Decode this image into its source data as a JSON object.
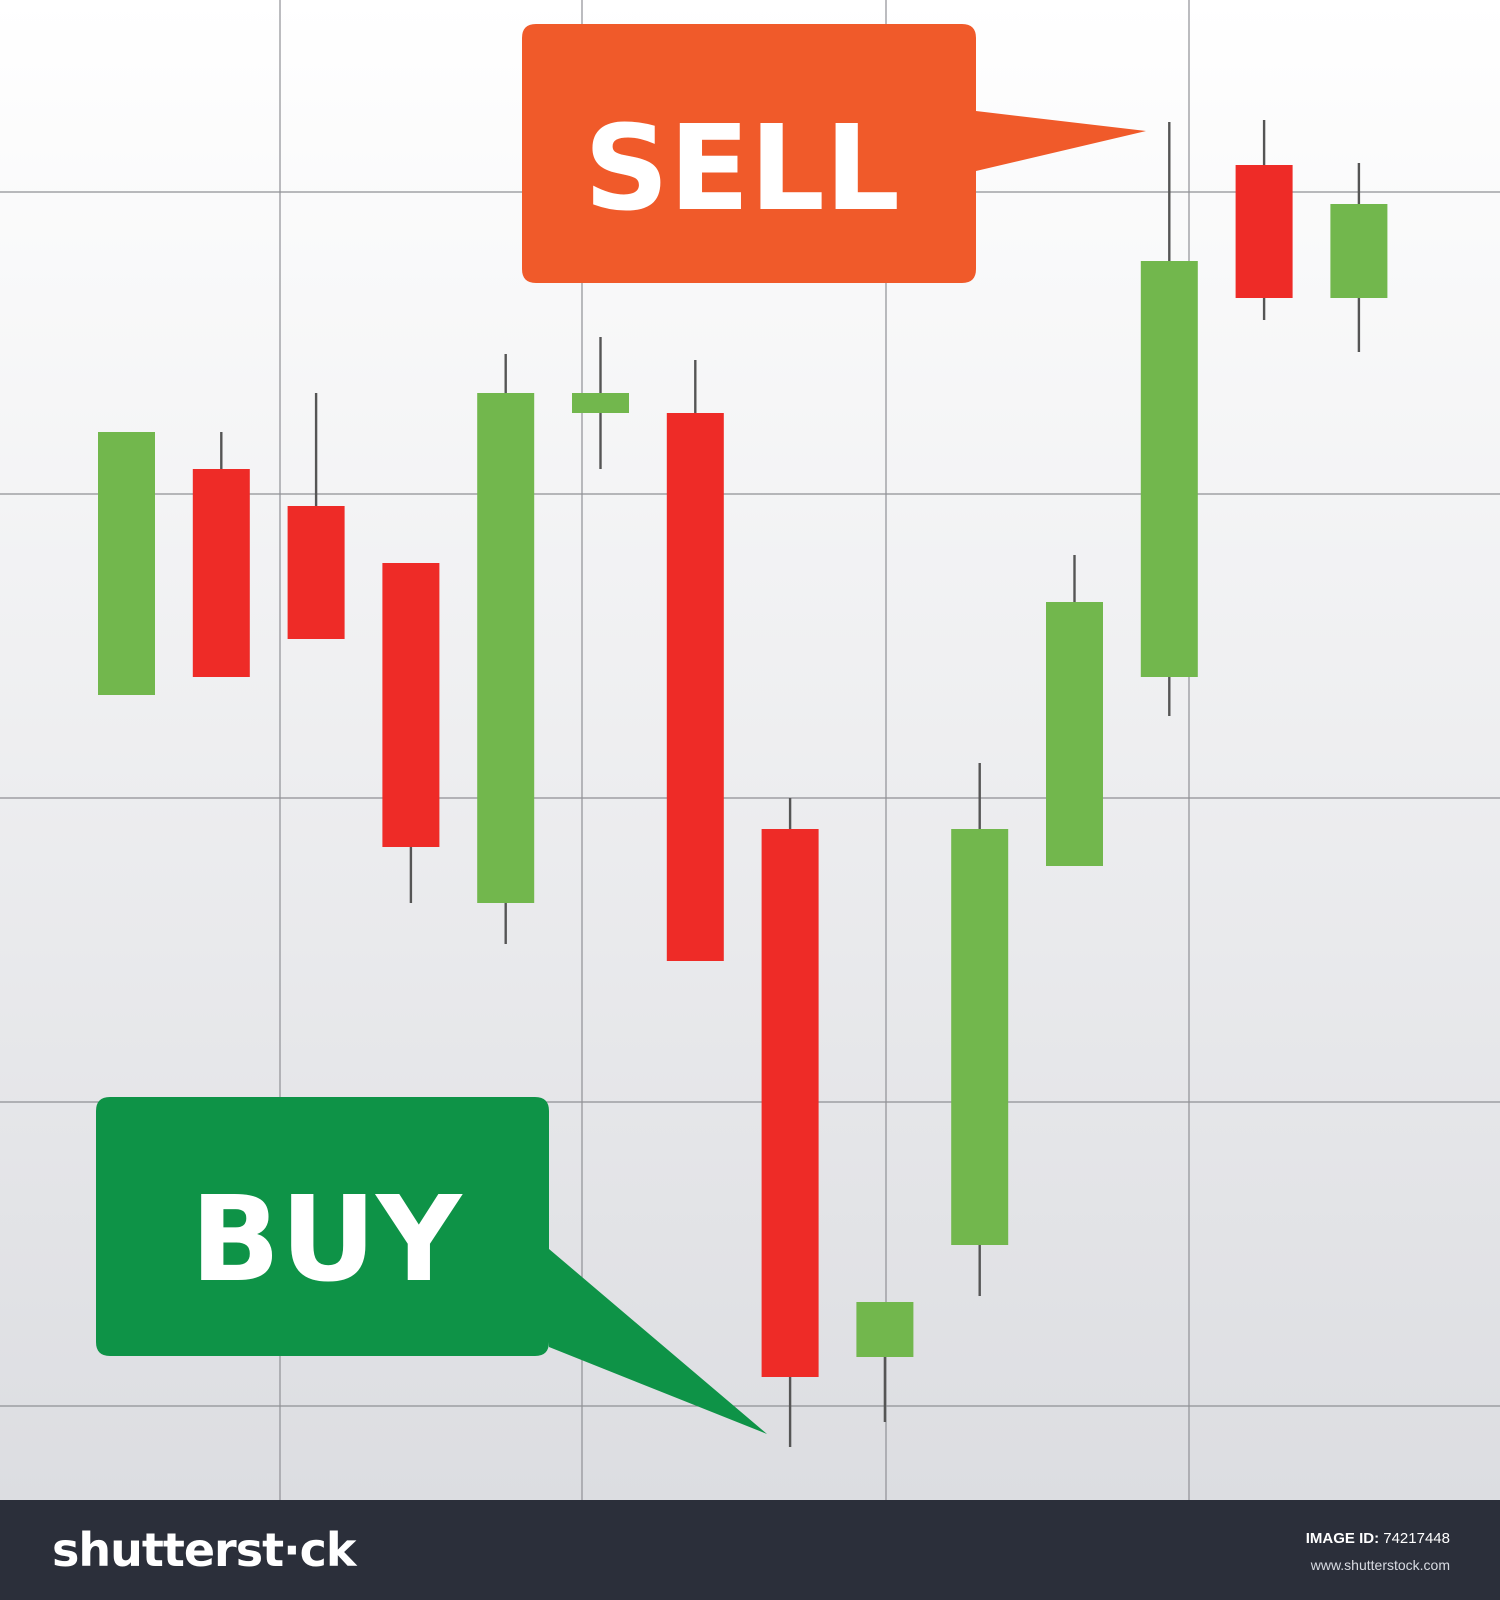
{
  "chart_data": {
    "type": "candlestick",
    "title": "",
    "xlabel": "",
    "ylabel": "",
    "grid": true,
    "ylim": [
      0,
      1500
    ],
    "up_color": "#72b74d",
    "down_color": "#ee2b27",
    "wick_color": "#555555",
    "candles": [
      {
        "direction": "up",
        "open": 805,
        "close": 1068,
        "high": 1068,
        "low": 805
      },
      {
        "direction": "down",
        "open": 1031,
        "close": 823,
        "high": 1068,
        "low": 823
      },
      {
        "direction": "down",
        "open": 994,
        "close": 861,
        "high": 1107,
        "low": 861
      },
      {
        "direction": "down",
        "open": 937,
        "close": 653,
        "high": 937,
        "low": 597
      },
      {
        "direction": "up",
        "open": 597,
        "close": 1107,
        "high": 1146,
        "low": 556
      },
      {
        "direction": "up",
        "open": 1087,
        "close": 1107,
        "high": 1163,
        "low": 1031
      },
      {
        "direction": "down",
        "open": 1087,
        "close": 539,
        "high": 1140,
        "low": 539
      },
      {
        "direction": "down",
        "open": 671,
        "close": 123,
        "high": 702,
        "low": 53
      },
      {
        "direction": "up",
        "open": 143,
        "close": 198,
        "high": 198,
        "low": 78
      },
      {
        "direction": "up",
        "open": 255,
        "close": 671,
        "high": 737,
        "low": 204
      },
      {
        "direction": "up",
        "open": 634,
        "close": 898,
        "high": 945,
        "low": 634
      },
      {
        "direction": "up",
        "open": 823,
        "close": 1239,
        "high": 1378,
        "low": 784
      },
      {
        "direction": "down",
        "open": 1335,
        "close": 1202,
        "high": 1380,
        "low": 1180
      },
      {
        "direction": "up",
        "open": 1202,
        "close": 1296,
        "high": 1337,
        "low": 1148
      }
    ],
    "annotations": [
      {
        "label": "SELL",
        "color": "#f05a2a",
        "candle_index": 11,
        "at": "high"
      },
      {
        "label": "BUY",
        "color": "#0e9347",
        "candle_index": 7,
        "at": "low"
      }
    ]
  },
  "watermark": {
    "logo_text": "shutterst·ck",
    "image_id_label": "IMAGE ID:",
    "image_id": "74217448",
    "url": "www.shutterstock.com"
  }
}
